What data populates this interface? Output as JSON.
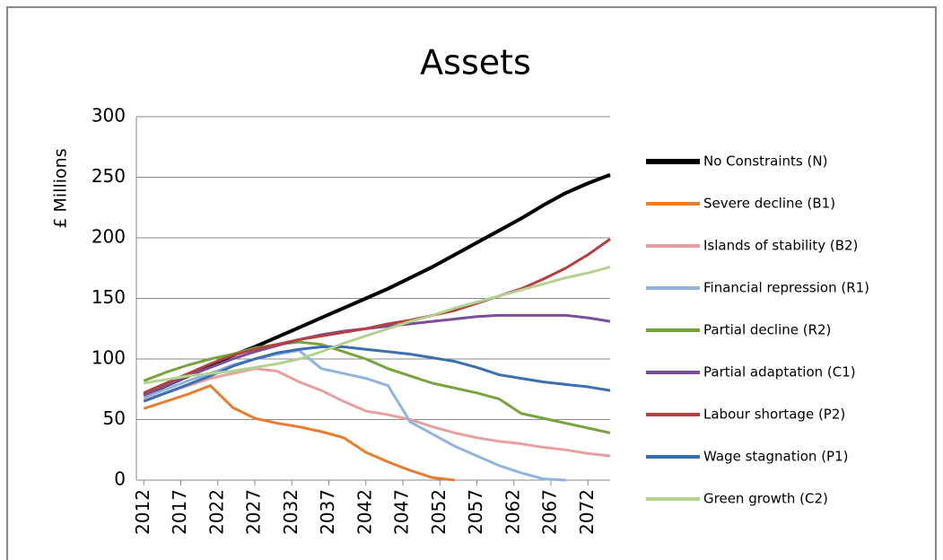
{
  "chart_data": {
    "type": "line",
    "title": "Assets",
    "y_label": "£ Millions",
    "x": [
      2012,
      2015,
      2018,
      2021,
      2024,
      2027,
      2030,
      2033,
      2036,
      2039,
      2042,
      2045,
      2048,
      2051,
      2054,
      2057,
      2060,
      2063,
      2066,
      2069,
      2072,
      2075
    ],
    "xlim": [
      2011,
      2075
    ],
    "xticks": [
      2012,
      2017,
      2022,
      2027,
      2032,
      2037,
      2042,
      2047,
      2052,
      2057,
      2062,
      2067,
      2072
    ],
    "ylim": [
      0,
      300
    ],
    "yticks": [
      0,
      50,
      100,
      150,
      200,
      250,
      300
    ],
    "grid": true,
    "legend": "right",
    "series": [
      {
        "name": "No Constraints (N)",
        "color": "#000000",
        "values": [
          70,
          78,
          86,
          95,
          103,
          110,
          118,
          126,
          134,
          142,
          150,
          158,
          167,
          176,
          186,
          196,
          206,
          216,
          227,
          237,
          245,
          252
        ]
      },
      {
        "name": "Severe decline (B1)",
        "color": "#e87d2f",
        "values": [
          59,
          65,
          71,
          78,
          60,
          51,
          47,
          44,
          40,
          35,
          23,
          15,
          8,
          2,
          0,
          null,
          null,
          null,
          null,
          null,
          null,
          null
        ]
      },
      {
        "name": "Islands of stability (B2)",
        "color": "#e6a0a0",
        "values": [
          66,
          72,
          78,
          84,
          88,
          92,
          90,
          81,
          74,
          65,
          57,
          54,
          50,
          44,
          39,
          35,
          32,
          30,
          27,
          25,
          22,
          20
        ]
      },
      {
        "name": "Financial repression (R1)",
        "color": "#8fb4de",
        "values": [
          68,
          75,
          82,
          88,
          95,
          100,
          104,
          107,
          92,
          88,
          84,
          78,
          48,
          38,
          28,
          20,
          12,
          6,
          1,
          0,
          null,
          null
        ]
      },
      {
        "name": "Partial decline (R2)",
        "color": "#77a33f",
        "values": [
          82,
          89,
          95,
          100,
          104,
          109,
          112,
          114,
          112,
          106,
          100,
          92,
          86,
          80,
          76,
          72,
          67,
          55,
          51,
          47,
          43,
          39
        ]
      },
      {
        "name": "Partial adaptation (C1)",
        "color": "#7a4f9a",
        "values": [
          70,
          78,
          86,
          93,
          100,
          106,
          111,
          116,
          120,
          123,
          125,
          127,
          129,
          131,
          133,
          135,
          136,
          136,
          136,
          136,
          134,
          131
        ]
      },
      {
        "name": "Labour shortage (P2)",
        "color": "#b4413f",
        "values": [
          72,
          80,
          88,
          96,
          103,
          108,
          112,
          116,
          119,
          122,
          125,
          129,
          132,
          136,
          140,
          146,
          152,
          158,
          166,
          175,
          186,
          199
        ]
      },
      {
        "name": "Wage stagnation (P1)",
        "color": "#3b6fb0",
        "values": [
          65,
          72,
          79,
          86,
          94,
          100,
          105,
          108,
          110,
          110,
          108,
          106,
          104,
          101,
          98,
          93,
          87,
          84,
          81,
          79,
          77,
          74
        ]
      },
      {
        "name": "Green growth (C2)",
        "color": "#b4d28f",
        "values": [
          80,
          83,
          86,
          88,
          90,
          93,
          96,
          100,
          106,
          113,
          119,
          125,
          131,
          136,
          142,
          147,
          152,
          157,
          162,
          167,
          171,
          176
        ]
      }
    ]
  }
}
